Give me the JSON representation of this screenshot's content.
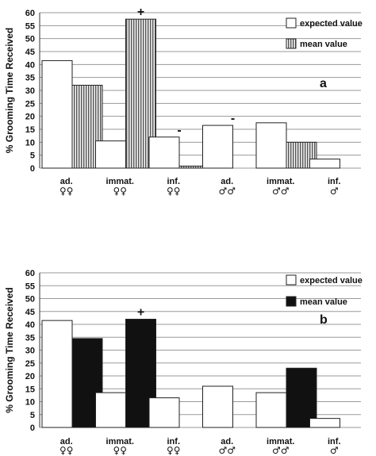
{
  "chart_data": [
    {
      "type": "bar",
      "panel_label": "a",
      "ylabel": "% Grooming Time Received",
      "ylim": [
        0,
        60
      ],
      "yticks": [
        "0",
        "5",
        "10",
        "15",
        "20",
        "25",
        "30",
        "35",
        "40",
        "45",
        "50",
        "55",
        "60"
      ],
      "categories": [
        {
          "label": "ad.",
          "symbol": "♀♀"
        },
        {
          "label": "immat.",
          "symbol": "♀♀"
        },
        {
          "label": "inf.",
          "symbol": "♀♀"
        },
        {
          "label": "ad.",
          "symbol": "♂♂"
        },
        {
          "label": "immat.",
          "symbol": "♂♂"
        },
        {
          "label": "inf.",
          "symbol": "♂"
        }
      ],
      "series": [
        {
          "name": "expected value",
          "style": "white",
          "values": [
            41.5,
            10.5,
            12,
            16.5,
            17.5,
            3.5
          ]
        },
        {
          "name": "mean value",
          "style": "hatched",
          "values": [
            32,
            57.5,
            0.8,
            0,
            10,
            0
          ]
        }
      ],
      "annotations": [
        {
          "category_index": 1,
          "text": "+"
        },
        {
          "category_index": 2,
          "text": "-"
        },
        {
          "category_index": 3,
          "text": "-"
        }
      ],
      "grid": true,
      "legend_position": "top-right"
    },
    {
      "type": "bar",
      "panel_label": "b",
      "ylabel": "% Grooming Time Received",
      "ylim": [
        0,
        60
      ],
      "yticks": [
        "0",
        "5",
        "10",
        "15",
        "20",
        "25",
        "30",
        "35",
        "40",
        "45",
        "50",
        "55",
        "60"
      ],
      "categories": [
        {
          "label": "ad.",
          "symbol": "♀♀"
        },
        {
          "label": "immat.",
          "symbol": "♀♀"
        },
        {
          "label": "inf.",
          "symbol": "♀♀"
        },
        {
          "label": "ad.",
          "symbol": "♂♂"
        },
        {
          "label": "immat.",
          "symbol": "♂♂"
        },
        {
          "label": "inf.",
          "symbol": "♂"
        }
      ],
      "series": [
        {
          "name": "expected value",
          "style": "white",
          "values": [
            41.5,
            13.5,
            11.5,
            16,
            13.5,
            3.5
          ]
        },
        {
          "name": "mean value",
          "style": "black",
          "values": [
            34.5,
            42,
            0,
            0,
            23,
            0
          ]
        }
      ],
      "annotations": [
        {
          "category_index": 1,
          "text": "+"
        }
      ],
      "grid": true,
      "legend_position": "top-right"
    }
  ]
}
